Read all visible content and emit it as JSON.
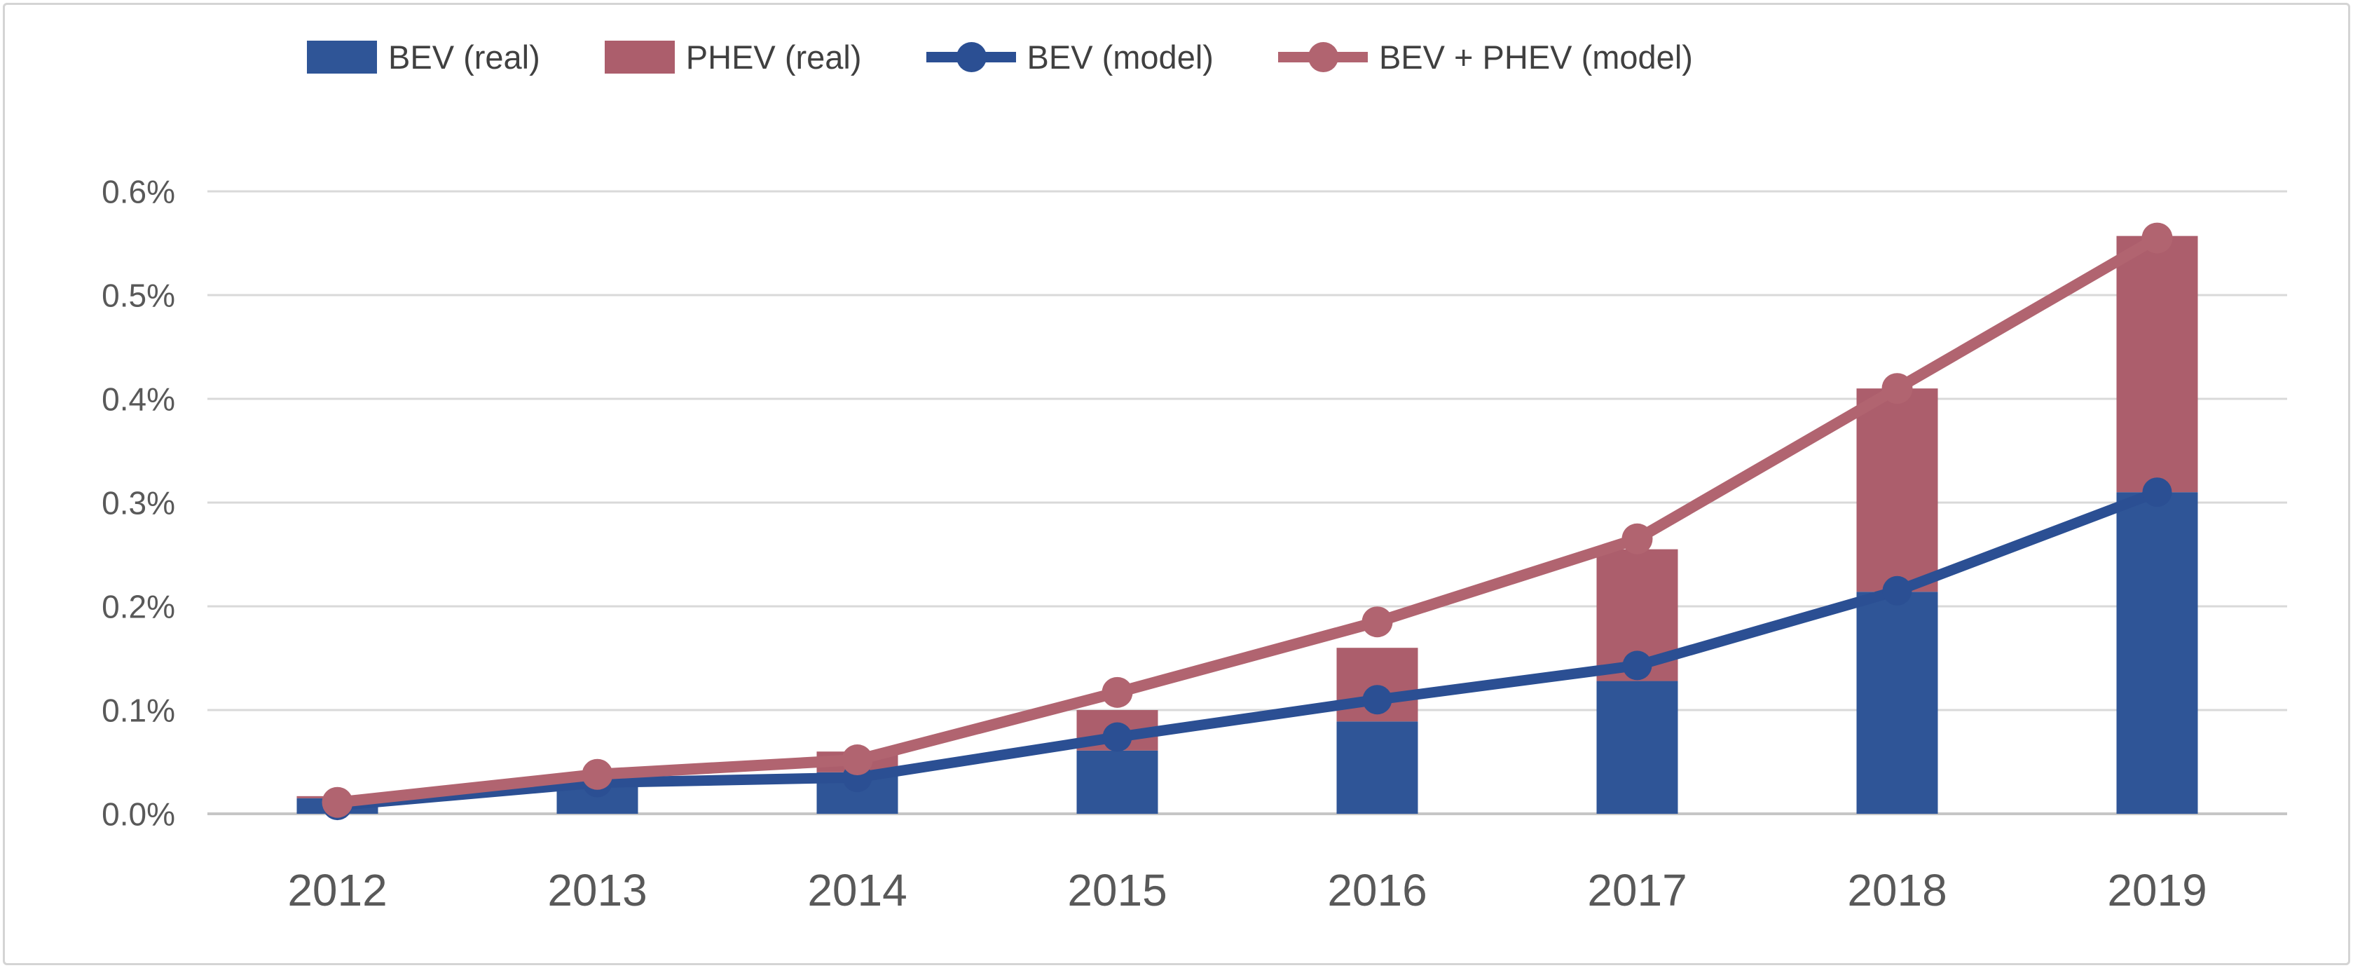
{
  "window": {
    "background": "#ffffff",
    "frame_border_color": "#d4d4d4"
  },
  "chart_data": {
    "type": "combo-stacked-bar-and-line",
    "title": "",
    "xlabel": "",
    "ylabel": "",
    "categories": [
      "2012",
      "2013",
      "2014",
      "2015",
      "2016",
      "2017",
      "2018",
      "2019"
    ],
    "unit": "percent of fleet",
    "series": [
      {
        "name": "BEV (real)",
        "type": "bar",
        "stack": "real",
        "color": "#2F5597",
        "values": [
          0.015,
          0.031,
          0.04,
          0.061,
          0.089,
          0.128,
          0.214,
          0.31
        ]
      },
      {
        "name": "PHEV (real)",
        "type": "bar",
        "stack": "real",
        "color": "#AC5E6C",
        "values": [
          0.002,
          0.003,
          0.02,
          0.039,
          0.071,
          0.127,
          0.196,
          0.247
        ]
      },
      {
        "name": "BEV (model)",
        "type": "line",
        "color": "#2B4F93",
        "marker": "circle",
        "values": [
          0.008,
          0.03,
          0.035,
          0.074,
          0.11,
          0.143,
          0.215,
          0.31
        ]
      },
      {
        "name": "BEV + PHEV (model)",
        "type": "line",
        "color": "#B16470",
        "marker": "circle",
        "values": [
          0.011,
          0.038,
          0.052,
          0.117,
          0.185,
          0.265,
          0.41,
          0.555
        ]
      }
    ],
    "yticks": [
      "0.0%",
      "0.1%",
      "0.2%",
      "0.3%",
      "0.4%",
      "0.5%",
      "0.6%"
    ],
    "ytick_values": [
      0.0,
      0.1,
      0.2,
      0.3,
      0.4,
      0.5,
      0.6
    ],
    "ylim": [
      0,
      0.6
    ],
    "grid": true,
    "legend_position": "top",
    "gridline_color": "#D9D9D9",
    "axis_line_color": "#C6C6C6",
    "tick_text_color": "#595959"
  }
}
